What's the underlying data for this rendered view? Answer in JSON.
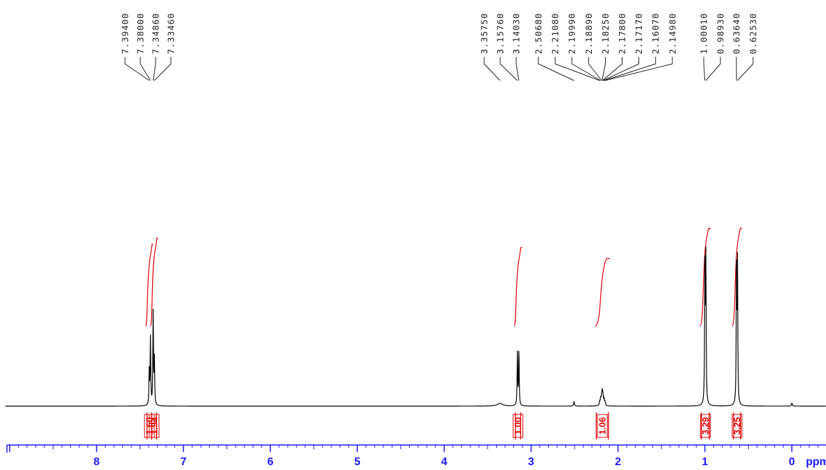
{
  "chart_data": {
    "type": "line",
    "title": "",
    "xlabel": "ppm",
    "ylabel": "",
    "x_reversed": true,
    "xlim": [
      9.05,
      -0.4
    ],
    "x_ticks": [
      "8",
      "7",
      "6",
      "5",
      "4",
      "3",
      "2",
      "1",
      "0"
    ],
    "peak_labels": [
      {
        "ppm": 7.394,
        "label": "7.39400"
      },
      {
        "ppm": 7.38,
        "label": "7.38000"
      },
      {
        "ppm": 7.3486,
        "label": "7.34860"
      },
      {
        "ppm": 7.3346,
        "label": "7.33460"
      },
      {
        "ppm": 3.3575,
        "label": "3.35750"
      },
      {
        "ppm": 3.1576,
        "label": "3.15760"
      },
      {
        "ppm": 3.1403,
        "label": "3.14030"
      },
      {
        "ppm": 2.5068,
        "label": "2.50680"
      },
      {
        "ppm": 2.2108,
        "label": "2.21080"
      },
      {
        "ppm": 2.1999,
        "label": "2.19990"
      },
      {
        "ppm": 2.1889,
        "label": "2.18890"
      },
      {
        "ppm": 2.1825,
        "label": "2.18250"
      },
      {
        "ppm": 2.178,
        "label": "2.17800"
      },
      {
        "ppm": 2.1717,
        "label": "2.17170"
      },
      {
        "ppm": 2.1607,
        "label": "2.16070"
      },
      {
        "ppm": 2.1498,
        "label": "2.14980"
      },
      {
        "ppm": 1.0001,
        "label": "1.00010"
      },
      {
        "ppm": 0.9893,
        "label": "0.98930"
      },
      {
        "ppm": 0.6364,
        "label": "0.63640"
      },
      {
        "ppm": 0.6253,
        "label": "0.62530"
      }
    ],
    "signals": [
      {
        "ppm": 7.394,
        "height": 0.46,
        "width": 0.004
      },
      {
        "ppm": 7.38,
        "height": 0.92,
        "width": 0.004
      },
      {
        "ppm": 7.3486,
        "height": 1.27,
        "width": 0.004
      },
      {
        "ppm": 7.3346,
        "height": 0.61,
        "width": 0.004
      },
      {
        "ppm": 3.3575,
        "height": 0.035,
        "width": 0.04
      },
      {
        "ppm": 3.1576,
        "height": 0.72,
        "width": 0.004
      },
      {
        "ppm": 3.1403,
        "height": 0.74,
        "width": 0.004
      },
      {
        "ppm": 2.5068,
        "height": 0.06,
        "width": 0.006
      },
      {
        "ppm": 2.2108,
        "height": 0.05,
        "width": 0.005
      },
      {
        "ppm": 2.1999,
        "height": 0.09,
        "width": 0.005
      },
      {
        "ppm": 2.1889,
        "height": 0.1,
        "width": 0.005
      },
      {
        "ppm": 2.1825,
        "height": 0.11,
        "width": 0.005
      },
      {
        "ppm": 2.178,
        "height": 0.1,
        "width": 0.005
      },
      {
        "ppm": 2.1717,
        "height": 0.09,
        "width": 0.005
      },
      {
        "ppm": 2.1607,
        "height": 0.08,
        "width": 0.005
      },
      {
        "ppm": 2.1498,
        "height": 0.05,
        "width": 0.005
      },
      {
        "ppm": 1.0001,
        "height": 1.9,
        "width": 0.004
      },
      {
        "ppm": 0.9893,
        "height": 1.94,
        "width": 0.004
      },
      {
        "ppm": 0.6364,
        "height": 1.86,
        "width": 0.004
      },
      {
        "ppm": 0.6253,
        "height": 1.9,
        "width": 0.004
      },
      {
        "ppm": 0.0,
        "height": 0.04,
        "width": 0.006
      }
    ],
    "integrals": [
      {
        "start": 7.42,
        "end": 7.365,
        "value": "1.60"
      },
      {
        "start": 7.365,
        "end": 7.31,
        "value": "1.94"
      },
      {
        "start": 3.18,
        "end": 3.12,
        "value": "1.00"
      },
      {
        "start": 2.25,
        "end": 2.11,
        "value": "1.06"
      },
      {
        "start": 1.04,
        "end": 0.95,
        "value": "3.29"
      },
      {
        "start": 0.67,
        "end": 0.59,
        "value": "3.25"
      }
    ],
    "colors": {
      "spectrum": "#000000",
      "integral": "#e00000",
      "axis": "#1a1aff",
      "label": "#222222"
    }
  }
}
